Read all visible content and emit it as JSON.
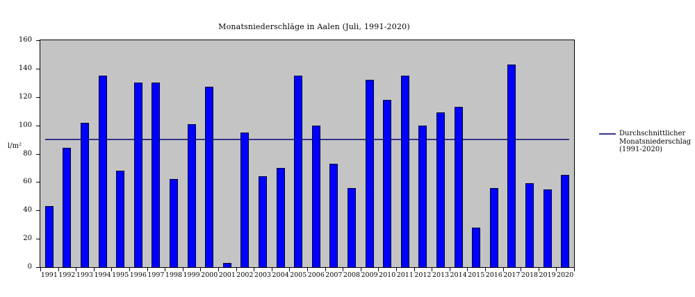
{
  "title": "Monatsniederschläge in Aalen (Juli, 1991-2020)",
  "y_axis_unit": "l/m²",
  "legend": {
    "lines": {
      "0": "Durchschnittlicher",
      "1": "Monatsniederschlag",
      "2": "(1991-2020)"
    }
  },
  "colors": {
    "bar_fill": "#0000ff",
    "bar_border": "#000030",
    "plot_background": "#c4c4c4",
    "average_line": "#333388",
    "axis": "#000000"
  },
  "chart_data": {
    "type": "bar",
    "title": "Monatsniederschläge in Aalen (Juli, 1991-2020)",
    "xlabel": "",
    "ylabel": "l/m²",
    "ylim": [
      0,
      160
    ],
    "ytick_step": 20,
    "grid": false,
    "legend_position": "right",
    "categories": [
      "1991",
      "1992",
      "1993",
      "1994",
      "1995",
      "1996",
      "1997",
      "1998",
      "1999",
      "2000",
      "2001",
      "2002",
      "2003",
      "2004",
      "2005",
      "2006",
      "2007",
      "2008",
      "2009",
      "2010",
      "2011",
      "2012",
      "2013",
      "2014",
      "2015",
      "2016",
      "2017",
      "2018",
      "2019",
      "2020"
    ],
    "values": [
      43,
      84,
      102,
      135,
      68,
      130,
      130,
      62,
      101,
      127,
      3,
      95,
      64,
      70,
      135,
      100,
      73,
      56,
      132,
      118,
      135,
      100,
      109,
      113,
      28,
      56,
      143,
      59,
      55,
      65
    ],
    "average_line": {
      "value": 90,
      "label": "Durchschnittlicher Monatsniederschlag (1991-2020)"
    }
  }
}
